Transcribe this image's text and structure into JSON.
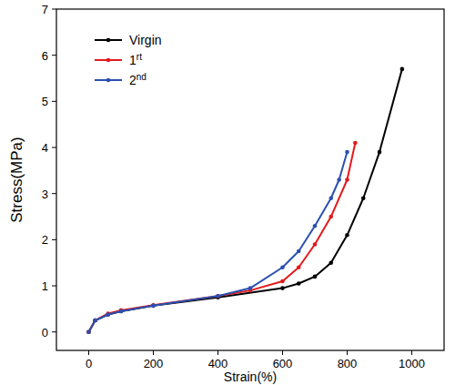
{
  "chart_data": {
    "type": "line",
    "x_label": "Strain(%)",
    "y_label": "Stress(MPa)",
    "xlim": [
      -100,
      1100
    ],
    "xticks": [
      0,
      200,
      400,
      600,
      800,
      1000
    ],
    "ylim": [
      -0.4,
      7
    ],
    "yticks": [
      0,
      1,
      2,
      3,
      4,
      5,
      6,
      7
    ],
    "grid": false,
    "legend": "upper left",
    "marker": "circle",
    "series": [
      {
        "name": "Virgin",
        "color": "#000000",
        "x": [
          0,
          20,
          60,
          100,
          200,
          400,
          600,
          650,
          700,
          750,
          800,
          850,
          900,
          970
        ],
        "values": [
          0,
          0.25,
          0.38,
          0.45,
          0.57,
          0.75,
          0.95,
          1.05,
          1.2,
          1.5,
          2.1,
          2.9,
          3.9,
          5.7
        ]
      },
      {
        "name": "1rt",
        "color": "#e31a1c",
        "x": [
          0,
          20,
          60,
          100,
          200,
          400,
          500,
          600,
          650,
          700,
          750,
          800,
          825
        ],
        "values": [
          0,
          0.25,
          0.4,
          0.47,
          0.58,
          0.78,
          0.9,
          1.1,
          1.4,
          1.9,
          2.5,
          3.3,
          4.1
        ]
      },
      {
        "name": "2nd",
        "color": "#2b50b0",
        "x": [
          0,
          20,
          60,
          100,
          200,
          400,
          500,
          600,
          650,
          700,
          750,
          775,
          800
        ],
        "values": [
          0,
          0.25,
          0.38,
          0.45,
          0.57,
          0.78,
          0.95,
          1.4,
          1.75,
          2.3,
          2.9,
          3.3,
          3.9
        ]
      }
    ]
  }
}
